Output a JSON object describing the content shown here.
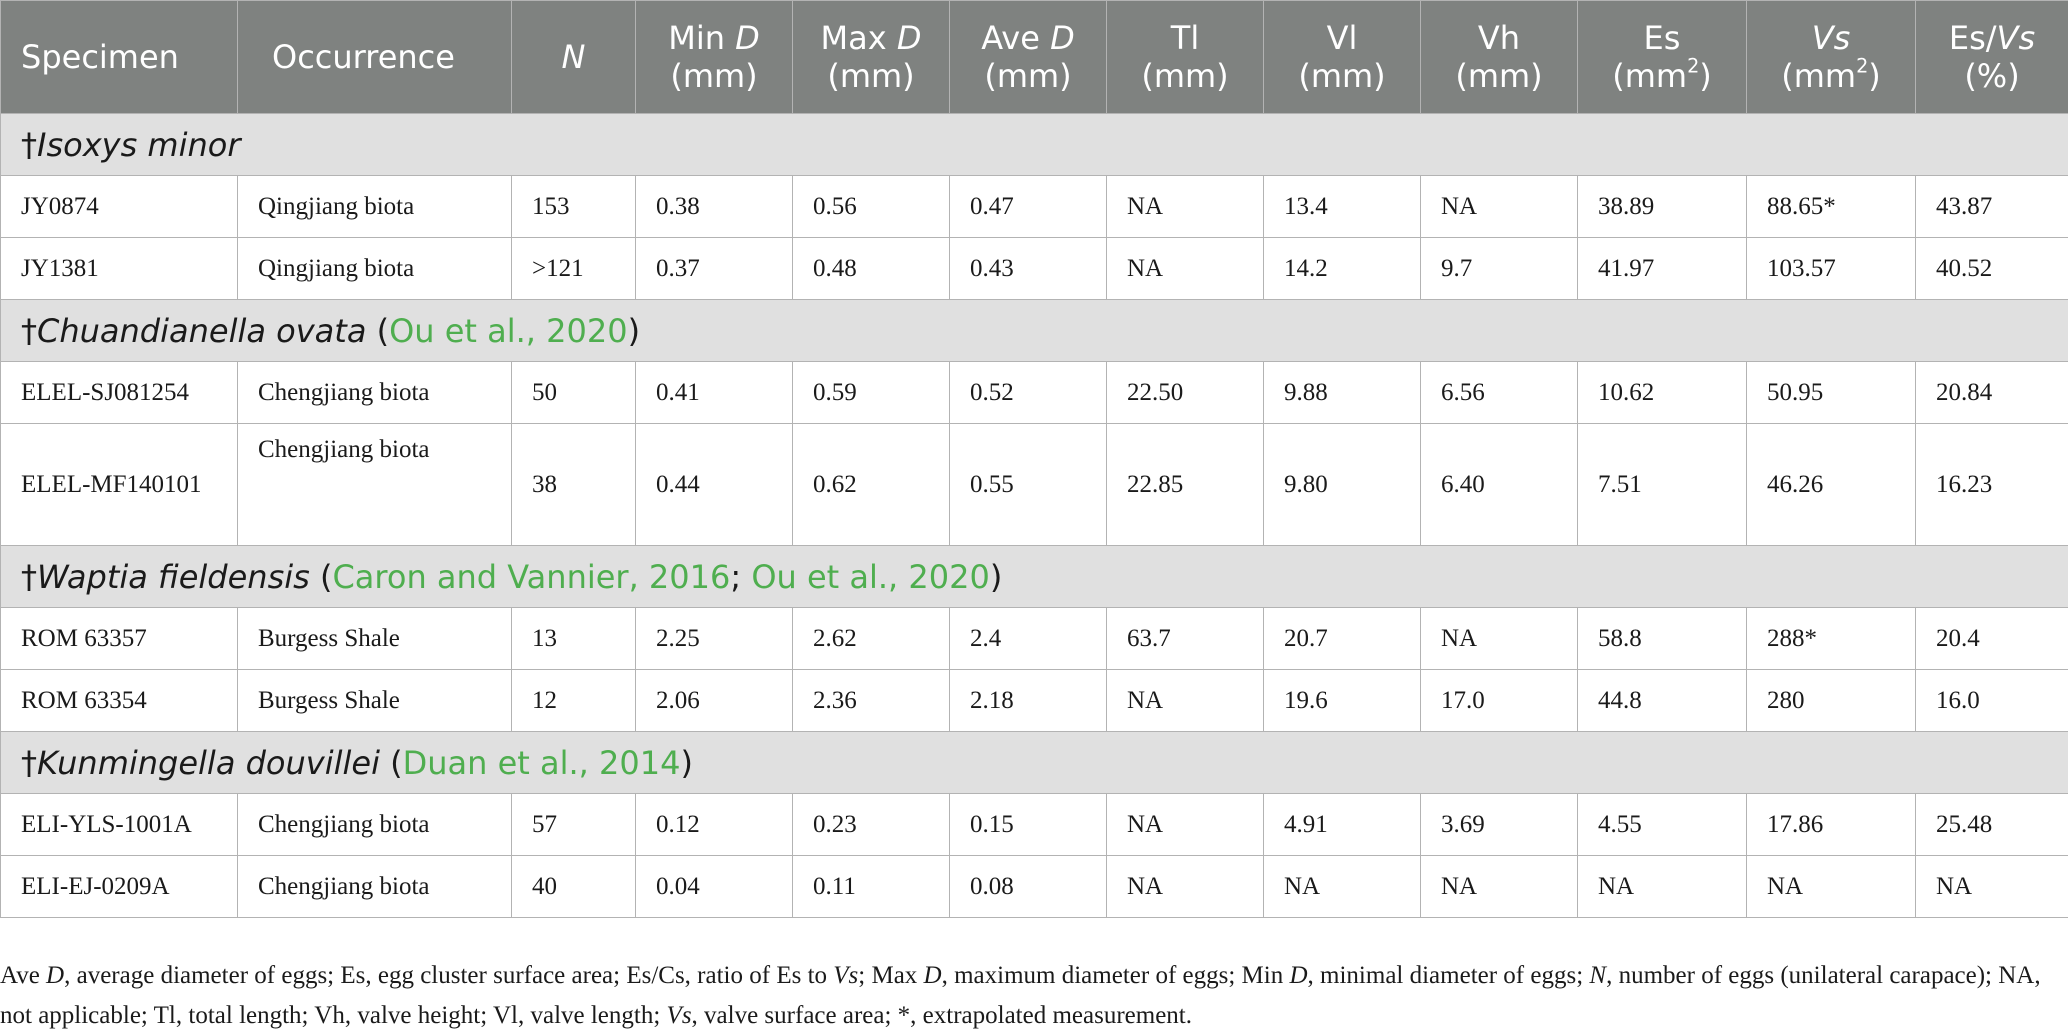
{
  "table": {
    "headers": [
      {
        "parts": [
          {
            "text": "Specimen"
          }
        ]
      },
      {
        "parts": [
          {
            "text": "Occurrence"
          }
        ]
      },
      {
        "parts": [
          {
            "text": "N",
            "italic": true
          }
        ]
      },
      {
        "parts": [
          {
            "text": "Min "
          },
          {
            "text": "D",
            "italic": true
          },
          {
            "text": "(mm)",
            "newline": true
          }
        ]
      },
      {
        "parts": [
          {
            "text": "Max "
          },
          {
            "text": "D",
            "italic": true
          },
          {
            "text": "(mm)",
            "newline": true
          }
        ]
      },
      {
        "parts": [
          {
            "text": "Ave "
          },
          {
            "text": "D",
            "italic": true
          },
          {
            "text": "(mm)",
            "newline": true
          }
        ]
      },
      {
        "parts": [
          {
            "text": "Tl"
          },
          {
            "text": "(mm)",
            "newline": true
          }
        ]
      },
      {
        "parts": [
          {
            "text": "Vl"
          },
          {
            "text": "(mm)",
            "newline": true
          }
        ]
      },
      {
        "parts": [
          {
            "text": "Vh"
          },
          {
            "text": "(mm)",
            "newline": true
          }
        ]
      },
      {
        "parts": [
          {
            "text": "Es"
          },
          {
            "text": "(mm",
            "newline": true
          },
          {
            "text": "2",
            "sup": true
          },
          {
            "text": ")"
          }
        ]
      },
      {
        "parts": [
          {
            "text": "Vs",
            "italic": true
          },
          {
            "text": "(mm",
            "newline": true
          },
          {
            "text": "2",
            "sup": true
          },
          {
            "text": ")"
          }
        ]
      },
      {
        "parts": [
          {
            "text": "Es/"
          },
          {
            "text": "Vs",
            "italic": true
          },
          {
            "text": "(%)",
            "newline": true
          }
        ]
      }
    ],
    "groups": [
      {
        "taxon": "†Isoxys minor",
        "refs": [],
        "rows": [
          [
            "JY0874",
            "Qingjiang biota",
            "153",
            "0.38",
            "0.56",
            "0.47",
            "NA",
            "13.4",
            "NA",
            "38.89",
            "88.65*",
            "43.87"
          ],
          [
            "JY1381",
            "Qingjiang biota",
            ">121",
            "0.37",
            "0.48",
            "0.43",
            "NA",
            "14.2",
            "9.7",
            "41.97",
            "103.57",
            "40.52"
          ]
        ]
      },
      {
        "taxon": "†Chuandianella ovata",
        "refs": [
          "Ou et al., 2020"
        ],
        "rows": [
          [
            "ELEL-SJ081254",
            "Chengjiang biota",
            "50",
            "0.41",
            "0.59",
            "0.52",
            "22.50",
            "9.88",
            "6.56",
            "10.62",
            "50.95",
            "20.84"
          ],
          [
            "ELEL-MF140101",
            "Chengjiang biota",
            "38",
            "0.44",
            "0.62",
            "0.55",
            "22.85",
            "9.80",
            "6.40",
            "7.51",
            "46.26",
            "16.23"
          ]
        ]
      },
      {
        "taxon": "†Waptia fieldensis",
        "refs": [
          "Caron and Vannier, 2016",
          "Ou et al., 2020"
        ],
        "rows": [
          [
            "ROM 63357",
            "Burgess Shale",
            "13",
            "2.25",
            "2.62",
            "2.4",
            "63.7",
            "20.7",
            "NA",
            "58.8",
            "288*",
            "20.4"
          ],
          [
            "ROM 63354",
            "Burgess Shale",
            "12",
            "2.06",
            "2.36",
            "2.18",
            "NA",
            "19.6",
            "17.0",
            "44.8",
            "280",
            "16.0"
          ]
        ]
      },
      {
        "taxon": "†Kunmingella douvillei",
        "refs": [
          "Duan et al., 2014"
        ],
        "rows": [
          [
            "ELI-YLS-1001A",
            "Chengjiang biota",
            "57",
            "0.12",
            "0.23",
            "0.15",
            "NA",
            "4.91",
            "3.69",
            "4.55",
            "17.86",
            "25.48"
          ],
          [
            "ELI-EJ-0209A",
            "Chengjiang biota",
            "40",
            "0.04",
            "0.11",
            "0.08",
            "NA",
            "NA",
            "NA",
            "NA",
            "NA",
            "NA"
          ]
        ]
      }
    ]
  },
  "footnote": [
    {
      "text": "Ave "
    },
    {
      "text": "D",
      "italic": true
    },
    {
      "text": ", average diameter of eggs; Es, egg cluster surface area; Es/Cs, ratio of Es to "
    },
    {
      "text": "Vs",
      "italic": true
    },
    {
      "text": "; Max "
    },
    {
      "text": "D",
      "italic": true
    },
    {
      "text": ", maximum diameter of eggs; Min "
    },
    {
      "text": "D",
      "italic": true
    },
    {
      "text": ", minimal diameter of eggs; "
    },
    {
      "text": "N",
      "italic": true
    },
    {
      "text": ", number of eggs (unilateral carapace); NA, not applicable; Tl, total length; Vh, valve height; Vl, valve length; "
    },
    {
      "text": "Vs",
      "italic": true
    },
    {
      "text": ", valve surface area; *, extrapolated measurement."
    }
  ]
}
